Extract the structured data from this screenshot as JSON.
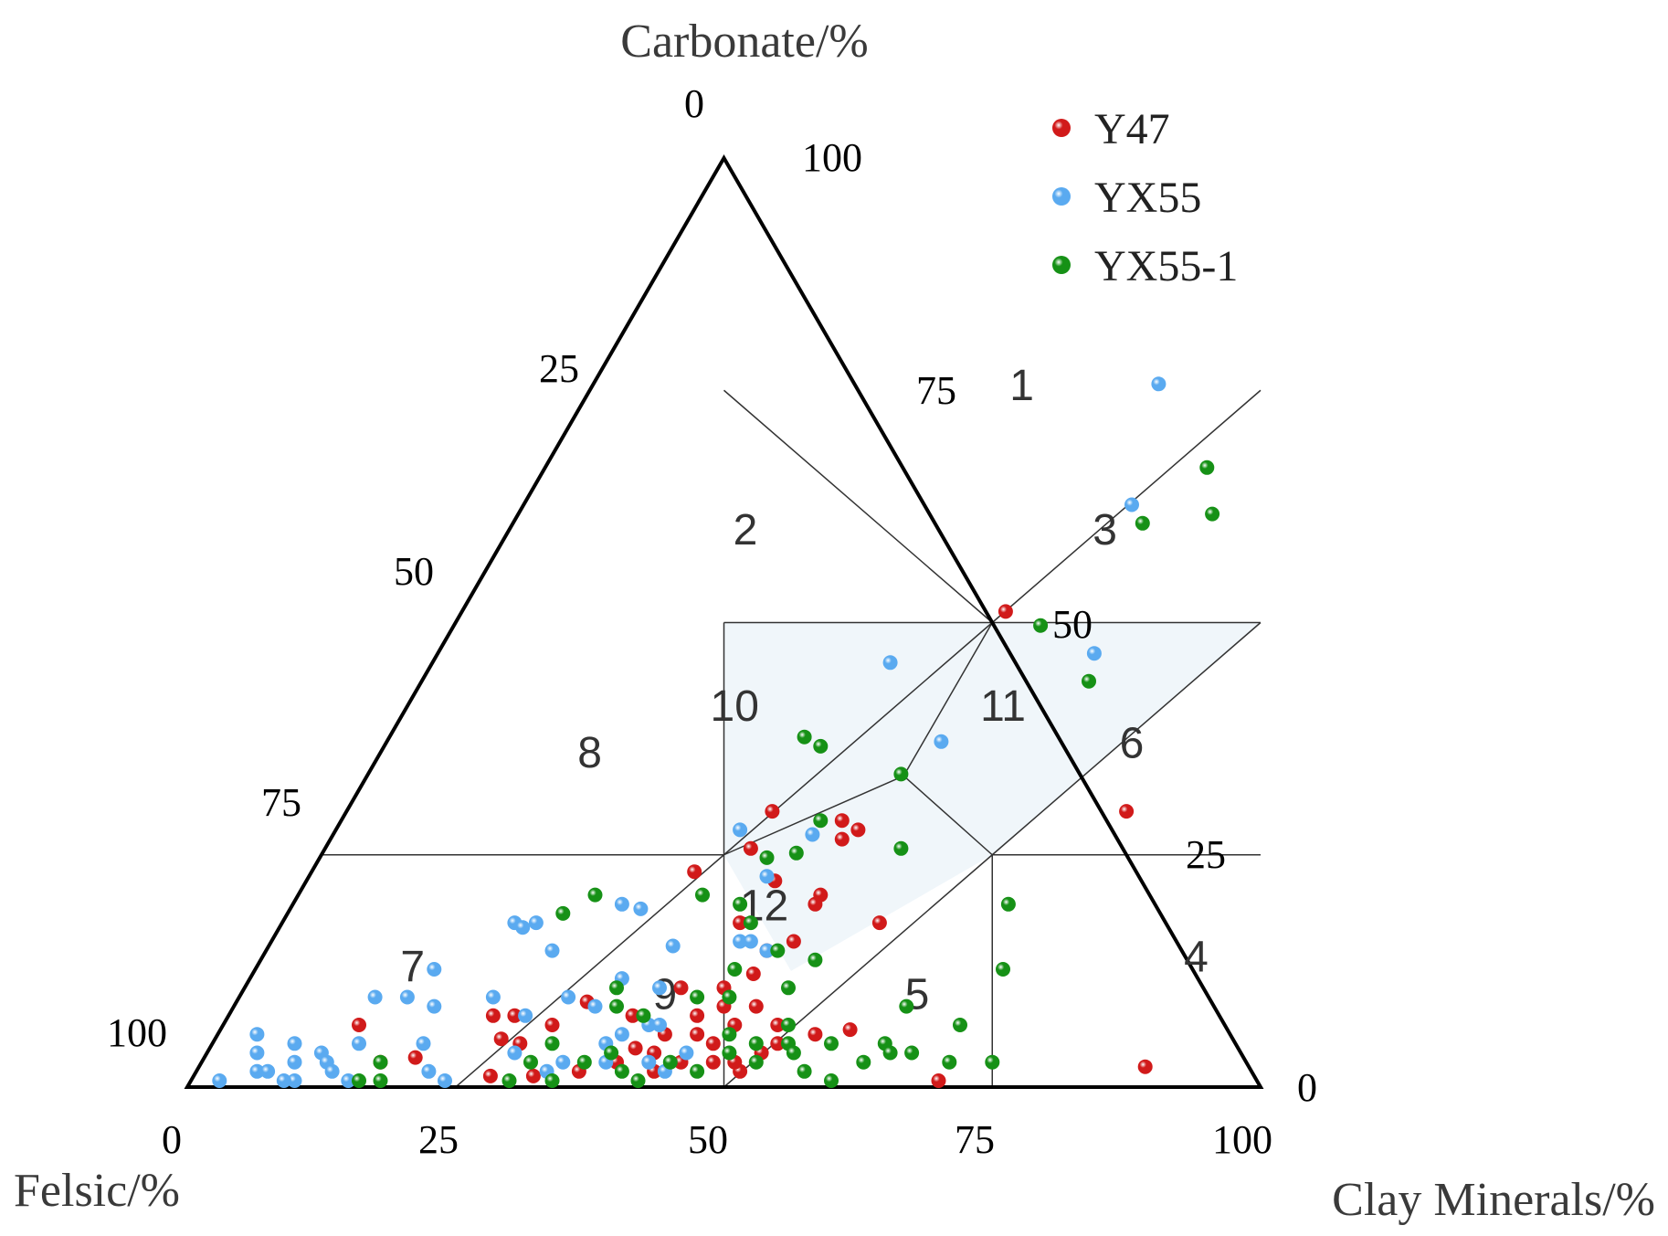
{
  "chart_data": {
    "type": "scatter",
    "subtype": "ternary",
    "axes": {
      "top": "Carbonate/%",
      "left": "Felsic/%",
      "right": "Clay Minerals/%"
    },
    "ticks": {
      "bottom": [
        "0",
        "25",
        "50",
        "75",
        "100"
      ],
      "left": [
        "0",
        "25",
        "50",
        "75",
        "100"
      ],
      "right": [
        "0",
        "25",
        "50",
        "75",
        "100"
      ]
    },
    "zones": [
      {
        "label": "1",
        "shaded": false
      },
      {
        "label": "2",
        "shaded": false
      },
      {
        "label": "3",
        "shaded": false
      },
      {
        "label": "4",
        "shaded": false
      },
      {
        "label": "5",
        "shaded": false
      },
      {
        "label": "6",
        "shaded": false
      },
      {
        "label": "7",
        "shaded": false
      },
      {
        "label": "8",
        "shaded": false
      },
      {
        "label": "9",
        "shaded": false
      },
      {
        "label": "10",
        "shaded": true
      },
      {
        "label": "11",
        "shaded": true
      },
      {
        "label": "12",
        "shaded": true
      }
    ],
    "zone_fill": "#f0f6fa",
    "legend_position": "top-right",
    "series": [
      {
        "name": "Y47",
        "color": "#d11a1a",
        "points": [
          {
            "x": 51,
            "y": 50.5
          },
          {
            "x": 73,
            "y": 29
          },
          {
            "x": 40,
            "y": 29
          },
          {
            "x": 47,
            "y": 28
          },
          {
            "x": 49,
            "y": 27
          },
          {
            "x": 48,
            "y": 26
          },
          {
            "x": 40,
            "y": 25
          },
          {
            "x": 36,
            "y": 22.5
          },
          {
            "x": 44,
            "y": 21.5
          },
          {
            "x": 49,
            "y": 20
          },
          {
            "x": 43,
            "y": 17
          },
          {
            "x": 49,
            "y": 19
          },
          {
            "x": 56,
            "y": 17
          },
          {
            "x": 49,
            "y": 15
          },
          {
            "x": 47,
            "y": 14
          },
          {
            "x": 47,
            "y": 11.5
          },
          {
            "x": 45,
            "y": 10
          },
          {
            "x": 49,
            "y": 8
          },
          {
            "x": 46,
            "y": 8
          },
          {
            "x": 44,
            "y": 7
          },
          {
            "x": 48,
            "y": 6
          },
          {
            "x": 52,
            "y": 6
          },
          {
            "x": 33,
            "y": 8.5
          },
          {
            "x": 31,
            "y": 6
          },
          {
            "x": 42,
            "y": 5
          },
          {
            "x": 45,
            "y": 5
          },
          {
            "x": 47,
            "y": 4
          },
          {
            "x": 40,
            "y": 3.5
          },
          {
            "x": 42,
            "y": 3
          },
          {
            "x": 45,
            "y": 2
          },
          {
            "x": 48,
            "y": 2
          },
          {
            "x": 51,
            "y": 1
          },
          {
            "x": 43,
            "y": 1
          },
          {
            "x": 39,
            "y": 2
          },
          {
            "x": 36,
            "y": 1
          },
          {
            "x": 32,
            "y": 0.5
          },
          {
            "x": 28,
            "y": 0.5
          },
          {
            "x": 29,
            "y": 4
          },
          {
            "x": 27,
            "y": 7
          },
          {
            "x": 25,
            "y": 7
          },
          {
            "x": 20,
            "y": 2.5
          },
          {
            "x": 17,
            "y": 2
          },
          {
            "x": 13,
            "y": 6
          },
          {
            "x": 27,
            "y": 4.5
          },
          {
            "x": 56,
            "y": 5
          },
          {
            "x": 59,
            "y": 5.5
          },
          {
            "x": 70,
            "y": 0
          },
          {
            "x": 88.5,
            "y": 1.5
          },
          {
            "x": 52,
            "y": 3
          },
          {
            "x": 50,
            "y": 2
          },
          {
            "x": 53,
            "y": 4
          },
          {
            "x": 38,
            "y": 7
          },
          {
            "x": 41,
            "y": 10
          }
        ]
      },
      {
        "name": "YX55",
        "color": "#5aaaf0",
        "points": [
          {
            "x": 53,
            "y": 75
          },
          {
            "x": 57,
            "y": 62
          },
          {
            "x": 43,
            "y": 45
          },
          {
            "x": 61.5,
            "y": 46
          },
          {
            "x": 52,
            "y": 36.5
          },
          {
            "x": 38,
            "y": 27
          },
          {
            "x": 43,
            "y": 22
          },
          {
            "x": 45,
            "y": 26.5
          },
          {
            "x": 31,
            "y": 19
          },
          {
            "x": 33,
            "y": 18.5
          },
          {
            "x": 22,
            "y": 17
          },
          {
            "x": 23,
            "y": 16.5
          },
          {
            "x": 24,
            "y": 17
          },
          {
            "x": 17,
            "y": 12
          },
          {
            "x": 27,
            "y": 14
          },
          {
            "x": 38,
            "y": 14.5
          },
          {
            "x": 44,
            "y": 15
          },
          {
            "x": 45,
            "y": 15
          },
          {
            "x": 47,
            "y": 14
          },
          {
            "x": 13,
            "y": 9
          },
          {
            "x": 16,
            "y": 9
          },
          {
            "x": 19,
            "y": 8
          },
          {
            "x": 24,
            "y": 9
          },
          {
            "x": 28,
            "y": 7
          },
          {
            "x": 34,
            "y": 8
          },
          {
            "x": 39,
            "y": 10
          },
          {
            "x": 40,
            "y": 6
          },
          {
            "x": 38,
            "y": 5
          },
          {
            "x": 4,
            "y": 5
          },
          {
            "x": 5,
            "y": 3
          },
          {
            "x": 6,
            "y": 1
          },
          {
            "x": 3,
            "y": 0
          },
          {
            "x": 8,
            "y": 4
          },
          {
            "x": 9,
            "y": 2
          },
          {
            "x": 10,
            "y": 0
          },
          {
            "x": 11,
            "y": 3
          },
          {
            "x": 12,
            "y": 2
          },
          {
            "x": 13,
            "y": 1
          },
          {
            "x": 14,
            "y": 4
          },
          {
            "x": 7,
            "y": 1
          },
          {
            "x": 9,
            "y": 0
          },
          {
            "x": 15,
            "y": 0
          },
          {
            "x": 20,
            "y": 4
          },
          {
            "x": 22,
            "y": 1
          },
          {
            "x": 24,
            "y": 0
          },
          {
            "x": 29,
            "y": 3
          },
          {
            "x": 33,
            "y": 1
          },
          {
            "x": 34,
            "y": 2
          },
          {
            "x": 38,
            "y": 2
          },
          {
            "x": 42,
            "y": 2
          },
          {
            "x": 44,
            "y": 1
          },
          {
            "x": 45,
            "y": 3
          },
          {
            "x": 37,
            "y": 4
          },
          {
            "x": 41,
            "y": 6
          },
          {
            "x": 35,
            "y": 11
          },
          {
            "x": 31,
            "y": 9
          }
        ]
      },
      {
        "name": "YX55-1",
        "color": "#169116",
        "points": [
          {
            "x": 62,
            "y": 66
          },
          {
            "x": 65,
            "y": 61
          },
          {
            "x": 59,
            "y": 60
          },
          {
            "x": 55,
            "y": 49
          },
          {
            "x": 62.5,
            "y": 43
          },
          {
            "x": 39,
            "y": 37
          },
          {
            "x": 41,
            "y": 36
          },
          {
            "x": 50,
            "y": 33
          },
          {
            "x": 45,
            "y": 28
          },
          {
            "x": 54,
            "y": 25
          },
          {
            "x": 42,
            "y": 24
          },
          {
            "x": 44.5,
            "y": 24.5
          },
          {
            "x": 28,
            "y": 20
          },
          {
            "x": 38,
            "y": 20
          },
          {
            "x": 42,
            "y": 19
          },
          {
            "x": 26,
            "y": 18
          },
          {
            "x": 44,
            "y": 17
          },
          {
            "x": 48,
            "y": 14
          },
          {
            "x": 67,
            "y": 19
          },
          {
            "x": 70,
            "y": 12
          },
          {
            "x": 63,
            "y": 8
          },
          {
            "x": 52,
            "y": 13
          },
          {
            "x": 51,
            "y": 10
          },
          {
            "x": 45,
            "y": 12
          },
          {
            "x": 46,
            "y": 9
          },
          {
            "x": 69,
            "y": 6
          },
          {
            "x": 63,
            "y": 4
          },
          {
            "x": 62,
            "y": 2
          },
          {
            "x": 64,
            "y": 3
          },
          {
            "x": 66,
            "y": 3
          },
          {
            "x": 70,
            "y": 2
          },
          {
            "x": 74,
            "y": 2
          },
          {
            "x": 60,
            "y": 0
          },
          {
            "x": 53,
            "y": 6
          },
          {
            "x": 54,
            "y": 4
          },
          {
            "x": 55,
            "y": 3
          },
          {
            "x": 52,
            "y": 2
          },
          {
            "x": 49,
            "y": 3
          },
          {
            "x": 47,
            "y": 1
          },
          {
            "x": 44,
            "y": 2
          },
          {
            "x": 42,
            "y": 0
          },
          {
            "x": 40,
            "y": 1
          },
          {
            "x": 38,
            "y": 3
          },
          {
            "x": 36,
            "y": 2
          },
          {
            "x": 34,
            "y": 0
          },
          {
            "x": 31,
            "y": 2
          },
          {
            "x": 30,
            "y": 0
          },
          {
            "x": 17,
            "y": 2
          },
          {
            "x": 18,
            "y": 0
          },
          {
            "x": 16,
            "y": 0
          },
          {
            "x": 35,
            "y": 10
          },
          {
            "x": 36,
            "y": 8
          },
          {
            "x": 32,
            "y": 4
          },
          {
            "x": 39,
            "y": 7
          },
          {
            "x": 43,
            "y": 9
          },
          {
            "x": 48,
            "y": 5
          },
          {
            "x": 51,
            "y": 4
          },
          {
            "x": 57,
            "y": 1
          },
          {
            "x": 58,
            "y": 4
          }
        ]
      }
    ]
  }
}
